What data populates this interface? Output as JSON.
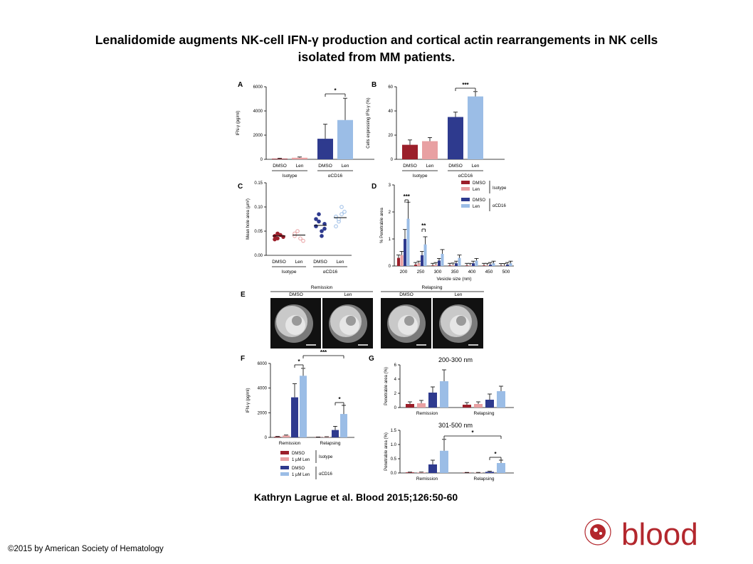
{
  "title_line1": "Lenalidomide augments NK-cell IFN-γ production and cortical actin rearrangements in NK cells",
  "title_line2": "isolated from MM patients.",
  "citation": "Kathryn Lagrue et al. Blood 2015;126:50-60",
  "copyright": "©2015 by American Society of Hematology",
  "logo_text": "blood",
  "colors": {
    "dmso_iso": "#9b1f2a",
    "len_iso": "#e8a0a2",
    "dmso_cd16": "#2e3a8e",
    "len_cd16": "#9bbde6"
  },
  "chart_data": [
    {
      "panel": "A",
      "type": "bar",
      "ylabel": "IFN-γ (pg/ml)",
      "ylim": [
        0,
        6000
      ],
      "yticks": [
        0,
        2000,
        4000,
        6000
      ],
      "categories": [
        "DMSO",
        "Len",
        "DMSO",
        "Len"
      ],
      "groups": [
        "Isotype",
        "αCD16"
      ],
      "values": [
        50,
        130,
        1700,
        3250
      ],
      "errors": [
        40,
        60,
        1200,
        1800
      ],
      "significance": "*"
    },
    {
      "panel": "B",
      "type": "bar",
      "ylabel": "Cells expressing IFN-γ (%)",
      "ylim": [
        0,
        60
      ],
      "yticks": [
        0,
        20,
        40,
        60
      ],
      "categories": [
        "DMSO",
        "Len",
        "DMSO",
        "Len"
      ],
      "groups": [
        "Isotype",
        "αCD16"
      ],
      "values": [
        12,
        15,
        35,
        52
      ],
      "errors": [
        4,
        3,
        4,
        4
      ],
      "significance": "***"
    },
    {
      "panel": "C",
      "type": "scatter",
      "ylabel": "Mean hole area (µm²)",
      "ylim": [
        0,
        0.15
      ],
      "yticks": [
        "0.00",
        "0.05",
        "0.10",
        "0.15"
      ],
      "categories": [
        "DMSO",
        "Len",
        "DMSO",
        "Len"
      ],
      "groups": [
        "Isotype",
        "αCD16"
      ],
      "points": [
        [
          0.04,
          0.035,
          0.042,
          0.038,
          0.033,
          0.045
        ],
        [
          0.04,
          0.05,
          0.035,
          0.03,
          0.045
        ],
        [
          0.06,
          0.07,
          0.05,
          0.065,
          0.075,
          0.085,
          0.04,
          0.055
        ],
        [
          0.08,
          0.07,
          0.1,
          0.09,
          0.06,
          0.075,
          0.085
        ]
      ],
      "medians": [
        0.04,
        0.042,
        0.062,
        0.078
      ]
    },
    {
      "panel": "D",
      "type": "bar",
      "ylabel": "% Penetrable area",
      "xlabel": "Vesicle size (nm)",
      "ylim": [
        0,
        3
      ],
      "yticks": [
        0,
        1,
        2,
        3
      ],
      "categories": [
        "200",
        "250",
        "300",
        "350",
        "400",
        "450",
        "500"
      ],
      "legend": [
        "DMSO",
        "Len",
        "DMSO",
        "Len"
      ],
      "legend_groups": [
        "Isotype",
        "αCD16"
      ],
      "series": [
        {
          "name": "DMSO",
          "values": [
            0.3,
            0.05,
            0.02,
            0.02,
            0.02,
            0.02,
            0.01
          ]
        },
        {
          "name": "Len",
          "values": [
            0.4,
            0.1,
            0.05,
            0.03,
            0.02,
            0.02,
            0.01
          ]
        },
        {
          "name": "DMSO",
          "values": [
            1.0,
            0.4,
            0.2,
            0.1,
            0.1,
            0.05,
            0.05
          ]
        },
        {
          "name": "Len",
          "values": [
            1.75,
            0.8,
            0.45,
            0.3,
            0.2,
            0.1,
            0.1
          ]
        }
      ],
      "significance": [
        "***",
        "**"
      ]
    },
    {
      "panel": "F",
      "type": "bar",
      "ylabel": "IFN-γ (pg/ml)",
      "ylim": [
        0,
        6000
      ],
      "yticks": [
        0,
        2000,
        4000,
        6000
      ],
      "categories": [
        "Remission",
        "Relapsing"
      ],
      "legend": [
        "DMSO",
        "1 µM Len",
        "DMSO",
        "1 µM Len"
      ],
      "legend_groups": [
        "Isotype",
        "αCD16"
      ],
      "series": [
        {
          "name": "DMSO",
          "values": [
            50,
            20
          ]
        },
        {
          "name": "1 µM Len",
          "values": [
            150,
            40
          ]
        },
        {
          "name": "DMSO",
          "values": [
            3250,
            600
          ]
        },
        {
          "name": "1 µM Len",
          "values": [
            5000,
            1900
          ]
        }
      ],
      "significance": [
        "*",
        "***",
        "*"
      ]
    },
    {
      "panel": "G",
      "type": "bar",
      "title": "200-300 nm",
      "ylabel": "Penetrable area (%)",
      "ylim": [
        0,
        6
      ],
      "yticks": [
        0,
        2,
        4,
        6
      ],
      "categories": [
        "Remission",
        "Relapsing"
      ],
      "series": [
        {
          "values": [
            0.5,
            0.4
          ]
        },
        {
          "values": [
            0.6,
            0.5
          ]
        },
        {
          "values": [
            2.1,
            1.1
          ]
        },
        {
          "values": [
            3.7,
            2.3
          ]
        }
      ]
    },
    {
      "panel": "G",
      "type": "bar",
      "title": "301-500 nm",
      "ylabel": "Penetrable area (%)",
      "ylim": [
        0,
        1.5
      ],
      "yticks": [
        "0.0",
        "0.5",
        "1.0",
        "1.5"
      ],
      "categories": [
        "Remission",
        "Relapsing"
      ],
      "series": [
        {
          "values": [
            0.02,
            0.01
          ]
        },
        {
          "values": [
            0.02,
            0.01
          ]
        },
        {
          "values": [
            0.3,
            0.04
          ]
        },
        {
          "values": [
            0.78,
            0.35
          ]
        }
      ],
      "significance": [
        "*",
        "*"
      ]
    }
  ],
  "panel_e": {
    "label": "E",
    "groups": [
      "Remission",
      "Relapsing"
    ],
    "images": [
      "DMSO",
      "Len",
      "DMSO",
      "Len"
    ]
  }
}
